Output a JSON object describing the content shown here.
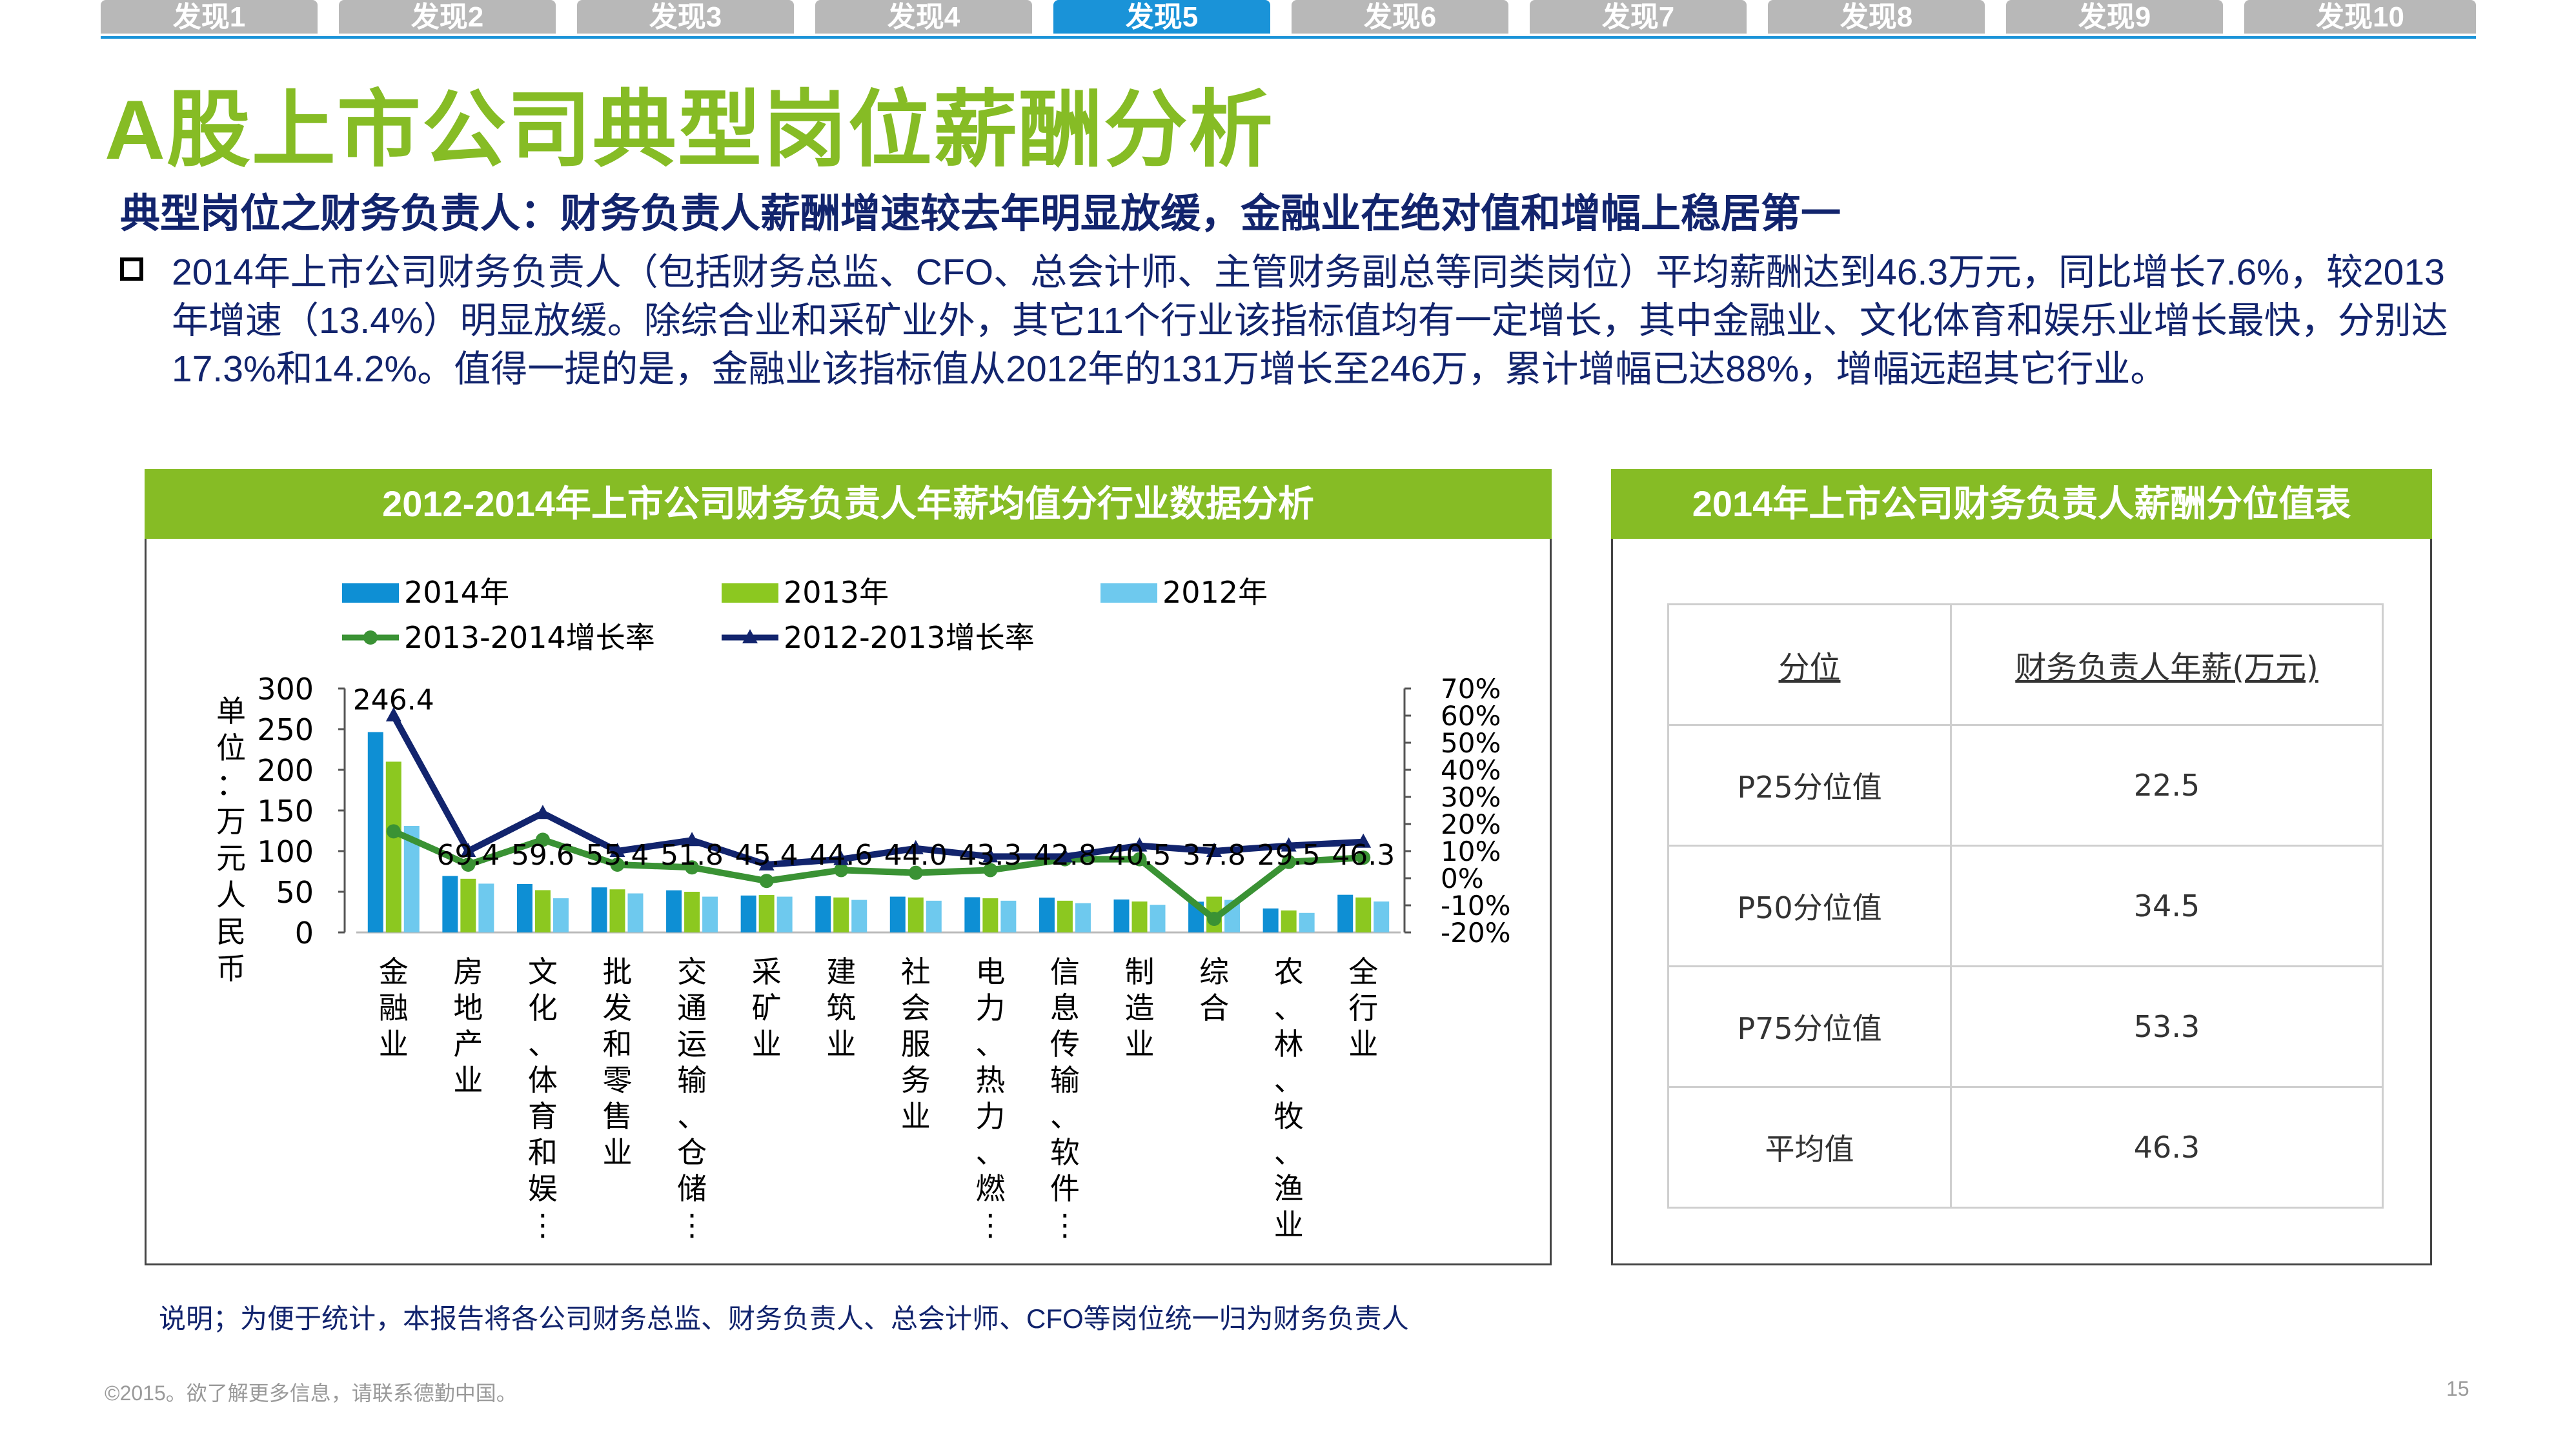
{
  "tabs": [
    "发现1",
    "发现2",
    "发现3",
    "发现4",
    "发现5",
    "发现6",
    "发现7",
    "发现8",
    "发现9",
    "发现10"
  ],
  "active_tab_index": 4,
  "title": "A股上市公司典型岗位薪酬分析",
  "subtitle": "典型岗位之财务负责人：财务负责人薪酬增速较去年明显放缓，金融业在绝对值和增幅上稳居第一",
  "bullet_text": "2014年上市公司财务负责人（包括财务总监、CFO、总会计师、主管财务副总等同类岗位）平均薪酬达到46.3万元，同比增长7.6%，较2013年增速（13.4%）明显放缓。除综合业和采矿业外，其它11个行业该指标值均有一定增长，其中金融业、文化体育和娱乐业增长最快，分别达17.3%和14.2%。值得一提的是，金融业该指标值从2012年的131万增长至246万，累计增幅已达88%，增幅远超其它行业。",
  "chart_panel_title": "2012-2014年上市公司财务负责人年薪均值分行业数据分析",
  "table_panel_title": "2014年上市公司财务负责人薪酬分位值表",
  "chart_data": {
    "type": "bar",
    "categories": [
      "金融业",
      "房地产业",
      "文化、体育和娱…",
      "批发和零售业",
      "交通运输、仓储…",
      "采矿业",
      "建筑业",
      "社会服务业",
      "电力、热力、燃…",
      "信息传输、软件…",
      "制造业",
      "综合",
      "农、林、牧、渔业",
      "全行业"
    ],
    "category_label_lines": [
      [
        "金",
        "融",
        "业"
      ],
      [
        "房",
        "地",
        "产",
        "业"
      ],
      [
        "文",
        "化",
        "、",
        "体",
        "育",
        "和",
        "娱",
        "⋮"
      ],
      [
        "批",
        "发",
        "和",
        "零",
        "售",
        "业"
      ],
      [
        "交",
        "通",
        "运",
        "输",
        "、",
        "仓",
        "储",
        "⋮"
      ],
      [
        "采",
        "矿",
        "业"
      ],
      [
        "建",
        "筑",
        "业"
      ],
      [
        "社",
        "会",
        "服",
        "务",
        "业"
      ],
      [
        "电",
        "力",
        "、",
        "热",
        "力",
        "、",
        "燃",
        "⋮"
      ],
      [
        "信",
        "息",
        "传",
        "输",
        "、",
        "软",
        "件",
        "⋮"
      ],
      [
        "制",
        "造",
        "业"
      ],
      [
        "综",
        "合"
      ],
      [
        "农",
        "、",
        "林",
        "、",
        "牧",
        "、",
        "渔",
        "业"
      ],
      [
        "全",
        "行",
        "业"
      ]
    ],
    "series": [
      {
        "name": "2014年",
        "kind": "bar",
        "axis": "left",
        "color": "#0e8fd4",
        "values": [
          246.4,
          69.4,
          59.6,
          55.4,
          51.8,
          45.4,
          44.6,
          44.0,
          43.3,
          42.8,
          40.5,
          37.8,
          29.5,
          46.3
        ]
      },
      {
        "name": "2013年",
        "kind": "bar",
        "axis": "left",
        "color": "#8cc820",
        "values": [
          210,
          66,
          52,
          53,
          50,
          46,
          43,
          43,
          42,
          39,
          38,
          44,
          27,
          43
        ]
      },
      {
        "name": "2012年",
        "kind": "bar",
        "axis": "left",
        "color": "#6ec9ee",
        "values": [
          131,
          60,
          42,
          48,
          44,
          44,
          40,
          39,
          39,
          36,
          34,
          40,
          24,
          38
        ]
      },
      {
        "name": "2013-2014增长率",
        "kind": "line",
        "axis": "right",
        "color": "#3a9234",
        "values": [
          17.3,
          5,
          14.2,
          5,
          4,
          -1,
          3,
          2,
          3,
          7,
          7,
          -15,
          6,
          7.6
        ]
      },
      {
        "name": "2012-2013增长率",
        "kind": "line",
        "axis": "right",
        "color": "#12246d",
        "values": [
          60,
          10,
          24,
          10,
          14,
          5,
          7,
          11,
          8,
          8,
          12,
          10,
          12,
          13.4
        ]
      }
    ],
    "data_labels": [
      "246.4",
      "69.4",
      "59.6",
      "55.4",
      "51.8",
      "45.4",
      "44.6",
      "44.0",
      "43.3",
      "42.8",
      "40.5",
      "37.8",
      "29.5",
      "46.3"
    ],
    "ylabel": "单位：万元人民币",
    "ylabel_chars": [
      "单",
      "位",
      "：",
      "万",
      "元",
      "人",
      "民",
      "币"
    ],
    "y_left": {
      "min": 0,
      "max": 300,
      "ticks": [
        "0",
        "50",
        "100",
        "150",
        "200",
        "250",
        "300"
      ]
    },
    "y_right": {
      "min": -20,
      "max": 70,
      "ticks": [
        "-20%",
        "-10%",
        "0%",
        "10%",
        "20%",
        "30%",
        "40%",
        "50%",
        "60%",
        "70%"
      ]
    },
    "legend_position": "top",
    "grid": false
  },
  "percentile_table": {
    "headers": [
      "分位",
      "财务负责人年薪(万元)"
    ],
    "rows": [
      {
        "label": "P25分位值",
        "value": "22.5"
      },
      {
        "label": "P50分位值",
        "value": "34.5"
      },
      {
        "label": "P75分位值",
        "value": "53.3"
      },
      {
        "label": "平均值",
        "value": "46.3"
      }
    ]
  },
  "note": "说明；为便于统计，本报告将各公司财务总监、财务负责人、总会计师、CFO等岗位统一归为财务负责人",
  "copyright": "©2015。欲了解更多信息，请联系德勤中国。",
  "page_number": "15"
}
